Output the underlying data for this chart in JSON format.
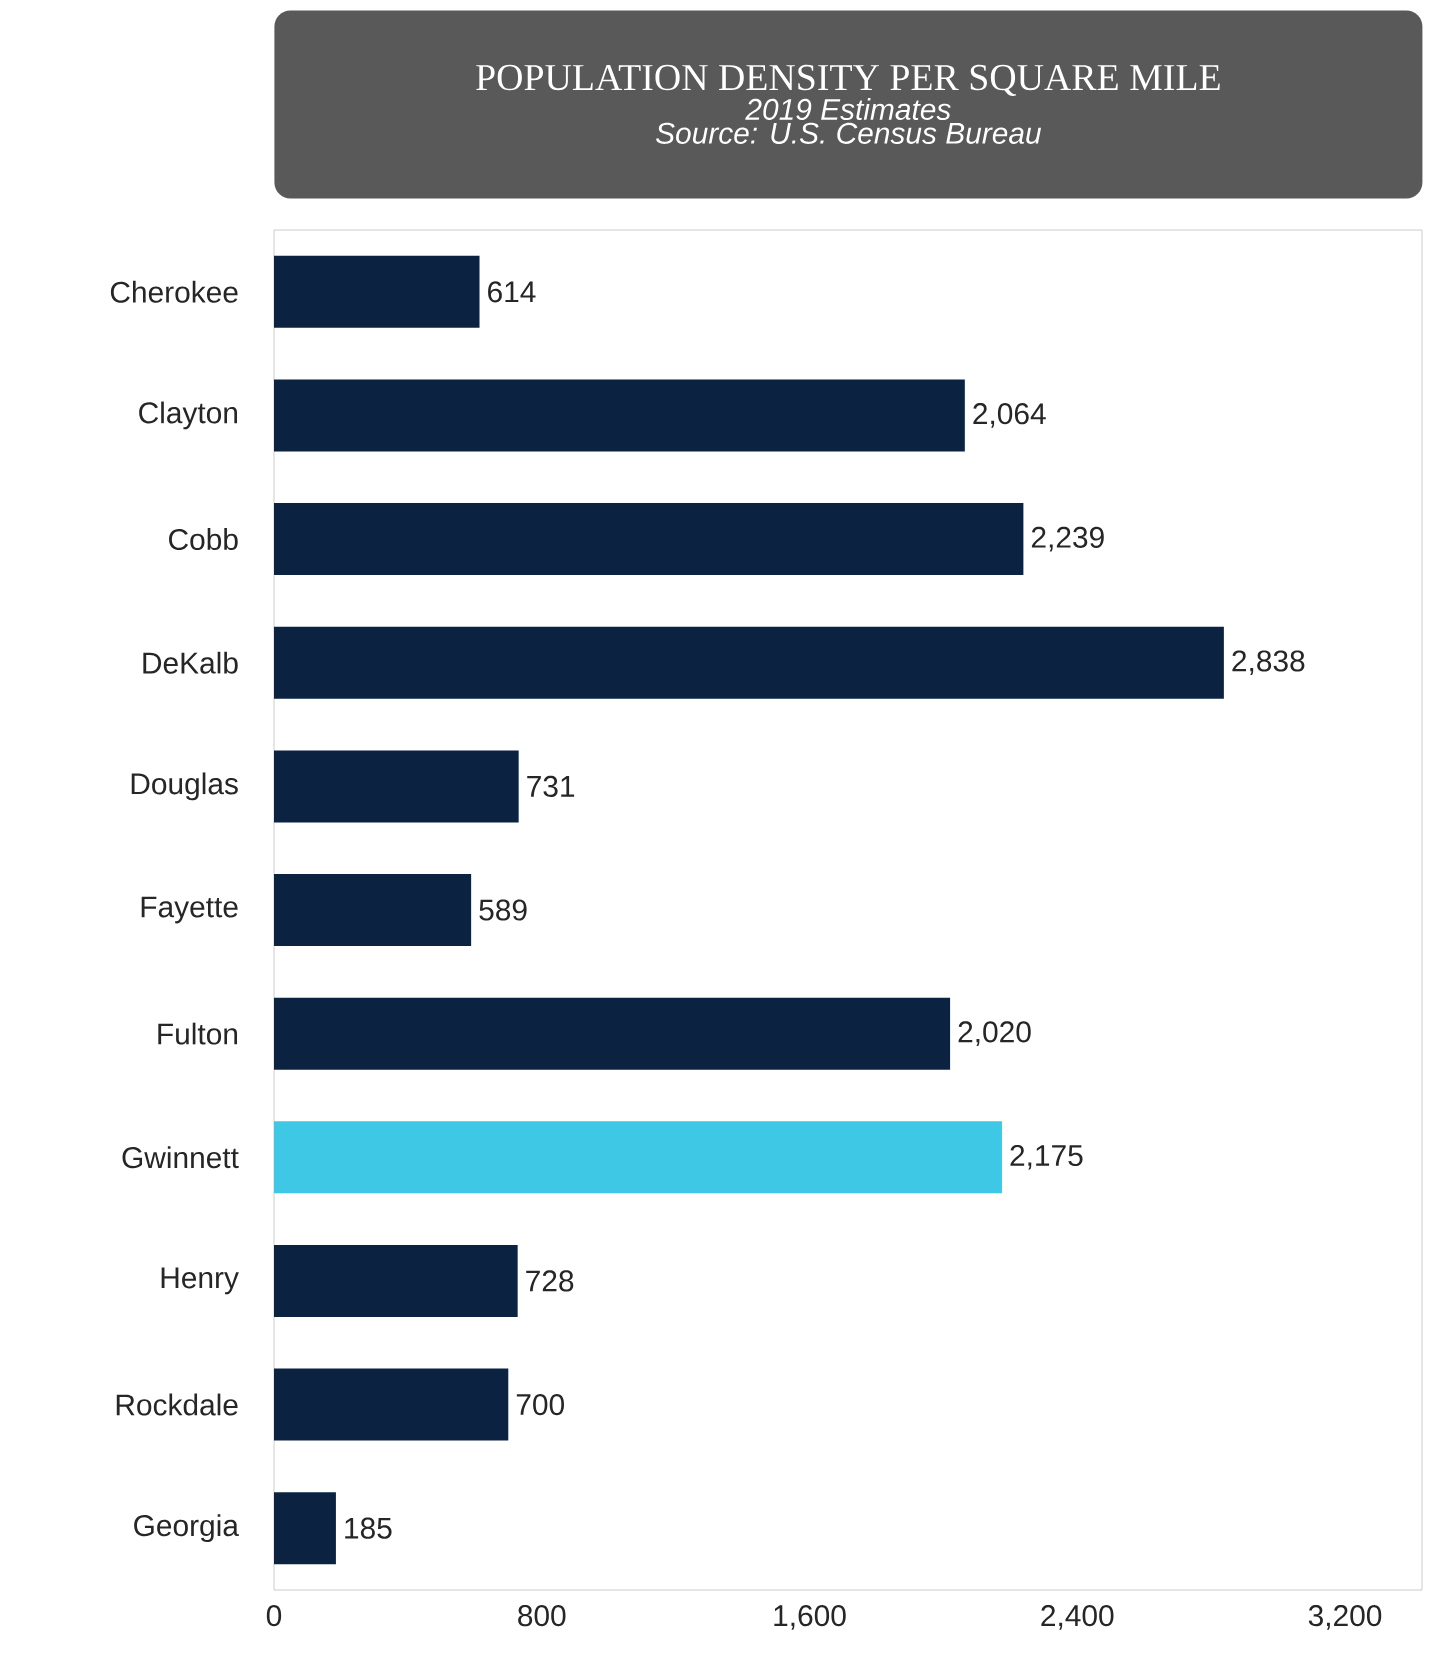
{
  "chart_data": {
    "type": "bar",
    "orientation": "horizontal",
    "title": "POPULATION DENSITY PER SQUARE MILE",
    "subtitle": "2019 Estimates",
    "annotations": [
      "Source: U.S. Census Bureau"
    ],
    "categories": [
      "Cherokee",
      "Clayton",
      "Cobb",
      "DeKalb",
      "Douglas",
      "Fayette",
      "Fulton",
      "Gwinnett",
      "Henry",
      "Rockdale",
      "Georgia"
    ],
    "values": [
      614,
      2064,
      2239,
      2838,
      731,
      589,
      2020,
      2175,
      728,
      700,
      185
    ],
    "value_labels": [
      "614",
      "2,064",
      "2,239",
      "2,838",
      "731",
      "589",
      "2,020",
      "2,175",
      "728",
      "700",
      "185"
    ],
    "colors": [
      "#0b2341",
      "#0b2341",
      "#0b2341",
      "#0b2341",
      "#0b2341",
      "#0b2341",
      "#0b2341",
      "#3ec8e6",
      "#0b2341",
      "#0b2341",
      "#0b2341"
    ],
    "xlim": [
      0,
      3430
    ],
    "xticks": [
      0,
      800,
      {
        "value": 1600,
        "label": "1,600"
      },
      {
        "value": 2400,
        "label": "2,400"
      },
      {
        "value": 3200,
        "label": "3,200"
      }
    ]
  }
}
